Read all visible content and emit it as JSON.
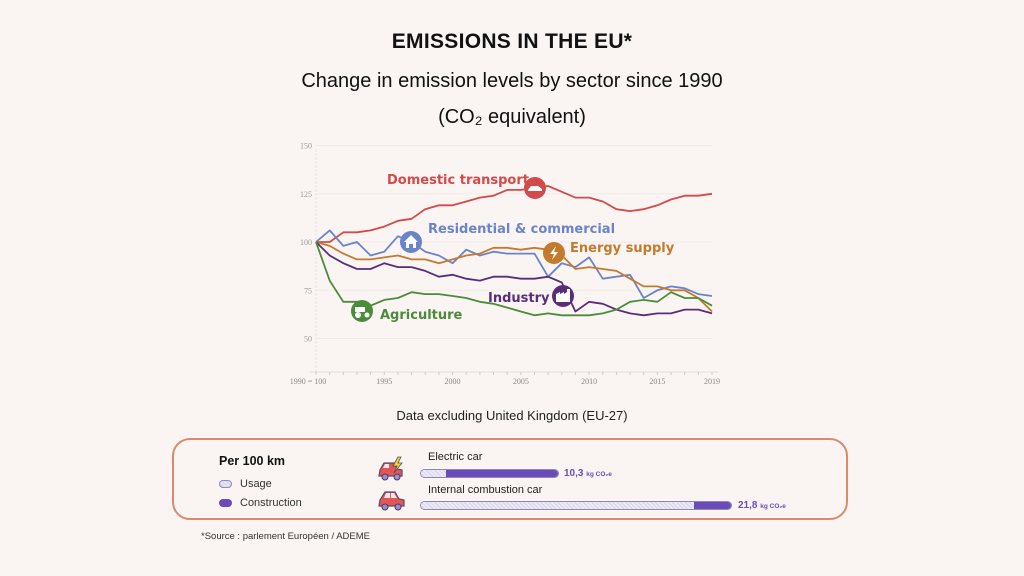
{
  "header": {
    "title": "EMISSIONS IN THE EU*",
    "subtitle": "Change in emission levels by sector since 1990",
    "unit": "(CO₂ equivalent)"
  },
  "chart_data": {
    "type": "line",
    "title": "Change in emission levels by sector since 1990",
    "xlabel": "",
    "ylabel": "",
    "x": [
      1990,
      1991,
      1992,
      1993,
      1994,
      1995,
      1996,
      1997,
      1998,
      1999,
      2000,
      2001,
      2002,
      2003,
      2004,
      2005,
      2006,
      2007,
      2008,
      2009,
      2010,
      2011,
      2012,
      2013,
      2014,
      2015,
      2016,
      2017,
      2018,
      2019
    ],
    "xticks": [
      1990,
      1995,
      2000,
      2005,
      2010,
      2015,
      2019
    ],
    "xtick_labels": [
      "1990 = 100",
      "1995",
      "2000",
      "2005",
      "2010",
      "2015",
      "2019"
    ],
    "yticks": [
      50,
      75,
      100,
      125,
      150
    ],
    "ylim": [
      35,
      150
    ],
    "xlim": [
      1990,
      2019
    ],
    "grid": true,
    "legend": "inline-labels",
    "series": [
      {
        "name": "Domestic transport",
        "color": "#d24a4a",
        "icon": "car-icon",
        "values": [
          100,
          100,
          105,
          105,
          106,
          108,
          111,
          112,
          117,
          119,
          119,
          121,
          123,
          124,
          127,
          127,
          128,
          129,
          126,
          123,
          123,
          121,
          117,
          116,
          117,
          119,
          122,
          124,
          124,
          125
        ]
      },
      {
        "name": "Residential & commercial",
        "color": "#6b83c8",
        "icon": "house-icon",
        "values": [
          100,
          106,
          98,
          100,
          93,
          95,
          103,
          100,
          95,
          93,
          89,
          96,
          93,
          95,
          94,
          94,
          94,
          82,
          89,
          87,
          92,
          81,
          82,
          83,
          71,
          75,
          77,
          76,
          73,
          72
        ]
      },
      {
        "name": "Energy supply",
        "color": "#c47a2c",
        "icon": "lightning-icon",
        "values": [
          100,
          98,
          94,
          91,
          91,
          92,
          93,
          91,
          91,
          89,
          91,
          93,
          94,
          97,
          97,
          96,
          97,
          96,
          93,
          86,
          87,
          86,
          85,
          81,
          77,
          77,
          75,
          75,
          71,
          64
        ]
      },
      {
        "name": "Industry",
        "color": "#5a2d7a",
        "icon": "factory-icon",
        "values": [
          100,
          93,
          89,
          86,
          86,
          89,
          87,
          87,
          85,
          82,
          83,
          81,
          80,
          82,
          82,
          81,
          81,
          82,
          79,
          64,
          69,
          68,
          65,
          63,
          62,
          63,
          63,
          65,
          65,
          63
        ]
      },
      {
        "name": "Agriculture",
        "color": "#4a8c3a",
        "icon": "tractor-icon",
        "values": [
          100,
          80,
          69,
          69,
          67,
          70,
          71,
          74,
          73,
          73,
          72,
          71,
          69,
          68,
          66,
          64,
          62,
          63,
          62,
          62,
          62,
          63,
          65,
          69,
          70,
          69,
          74,
          71,
          71,
          67
        ]
      }
    ]
  },
  "note": "Data excluding United Kingdom (EU-27)",
  "comparison": {
    "heading": "Per 100 km",
    "legend": [
      {
        "label": "Usage"
      },
      {
        "label": "Construction"
      }
    ],
    "bars": [
      {
        "label": "Electric car",
        "total": "10,3",
        "unit": "kg CO₂e",
        "usage_fraction": 0.18
      },
      {
        "label": "Internal combustion car",
        "total": "21,8",
        "unit": "kg CO₂e",
        "usage_fraction": 0.88
      }
    ]
  },
  "source": "*Source : parlement Européen / ADEME"
}
